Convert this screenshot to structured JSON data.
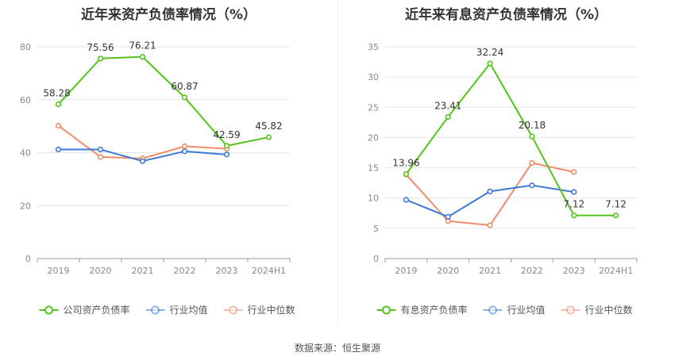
{
  "chart_data": [
    {
      "type": "line",
      "title": "近年来资产负债率情况（%）",
      "categories": [
        "2019",
        "2020",
        "2021",
        "2022",
        "2023",
        "2024H1"
      ],
      "ylim": [
        0,
        80
      ],
      "yticks": [
        0,
        20,
        40,
        60,
        80
      ],
      "grid": true,
      "legend_position": "bottom",
      "series": [
        {
          "name": "公司资产负债率",
          "color": "#52c41a",
          "values": [
            58.28,
            75.56,
            76.21,
            60.87,
            42.59,
            45.82
          ],
          "labels": [
            "58.28",
            "75.56",
            "76.21",
            "60.87",
            "42.59",
            "45.82"
          ]
        },
        {
          "name": "行业均值",
          "color": "#3a78d8",
          "values": [
            41.2,
            41.2,
            36.8,
            40.5,
            39.3,
            null
          ]
        },
        {
          "name": "行业中位数",
          "color": "#f08c68",
          "values": [
            50.2,
            38.4,
            37.8,
            42.4,
            41.5,
            null
          ]
        }
      ]
    },
    {
      "type": "line",
      "title": "近年来有息资产负债率情况（%）",
      "categories": [
        "2019",
        "2020",
        "2021",
        "2022",
        "2023",
        "2024H1"
      ],
      "ylim": [
        0,
        35
      ],
      "yticks": [
        0,
        5,
        10,
        15,
        20,
        25,
        30,
        35
      ],
      "grid": true,
      "legend_position": "bottom",
      "series": [
        {
          "name": "有息资产负债率",
          "color": "#52c41a",
          "values": [
            13.96,
            23.41,
            32.24,
            20.18,
            7.12,
            7.12
          ],
          "labels": [
            "13.96",
            "23.41",
            "32.24",
            "20.18",
            "7.12",
            "7.12"
          ]
        },
        {
          "name": "行业均值",
          "color": "#3a78d8",
          "values": [
            9.7,
            6.9,
            11.1,
            12.1,
            11.0,
            null
          ]
        },
        {
          "name": "行业中位数",
          "color": "#f08c68",
          "values": [
            13.9,
            6.2,
            5.5,
            15.8,
            14.3,
            null
          ]
        }
      ]
    }
  ],
  "footer": "数据来源：恒生聚源"
}
